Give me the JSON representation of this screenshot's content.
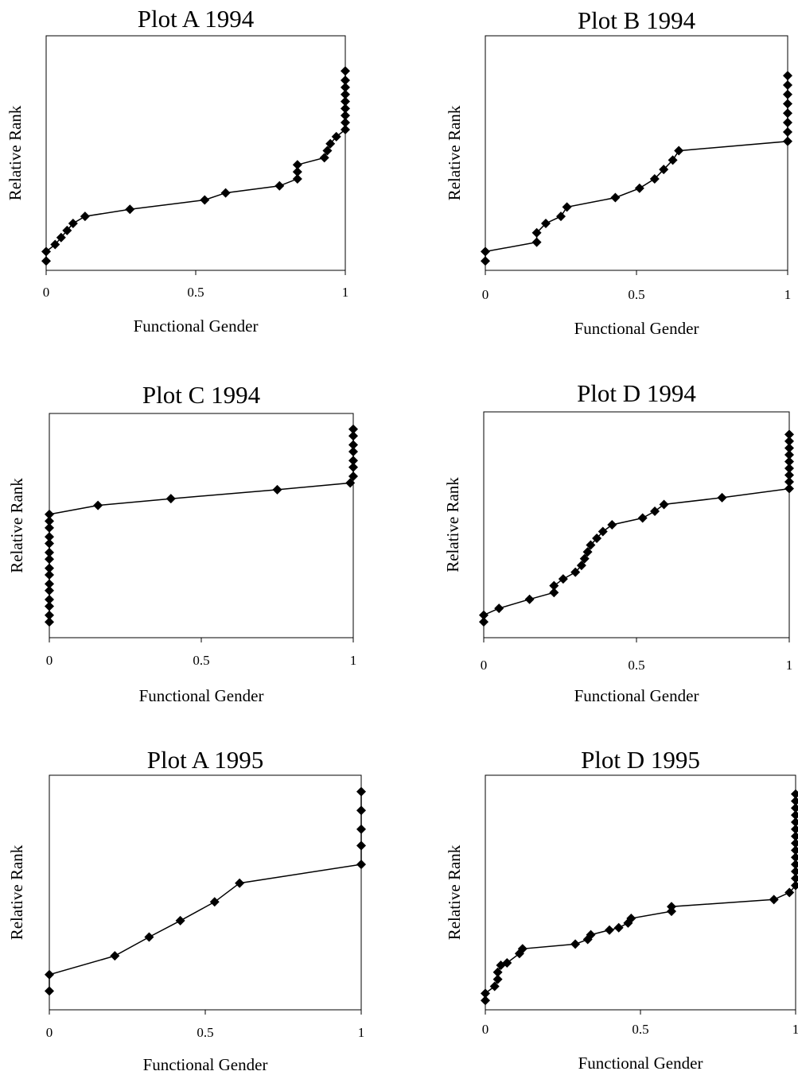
{
  "chart_data": [
    {
      "type": "line",
      "title": "Plot A 1994",
      "xlabel": "Functional Gender",
      "ylabel": "Relative Rank",
      "xlim": [
        0,
        1
      ],
      "ylim": [
        0,
        1
      ],
      "xticks": [
        "0",
        "0.5",
        "1"
      ],
      "points": [
        [
          0.0,
          0.04
        ],
        [
          0.0,
          0.08
        ],
        [
          0.03,
          0.11
        ],
        [
          0.05,
          0.14
        ],
        [
          0.07,
          0.17
        ],
        [
          0.09,
          0.2
        ],
        [
          0.13,
          0.23
        ],
        [
          0.28,
          0.26
        ],
        [
          0.53,
          0.3
        ],
        [
          0.6,
          0.33
        ],
        [
          0.78,
          0.36
        ],
        [
          0.84,
          0.39
        ],
        [
          0.84,
          0.42
        ],
        [
          0.84,
          0.45
        ],
        [
          0.93,
          0.48
        ],
        [
          0.94,
          0.51
        ],
        [
          0.95,
          0.54
        ],
        [
          0.97,
          0.57
        ],
        [
          1.0,
          0.6
        ],
        [
          1.0,
          0.63
        ],
        [
          1.0,
          0.66
        ],
        [
          1.0,
          0.69
        ],
        [
          1.0,
          0.72
        ],
        [
          1.0,
          0.75
        ],
        [
          1.0,
          0.78
        ],
        [
          1.0,
          0.81
        ],
        [
          1.0,
          0.85
        ]
      ]
    },
    {
      "type": "line",
      "title": "Plot B 1994",
      "xlabel": "Functional Gender",
      "ylabel": "Relative Rank",
      "xlim": [
        0,
        1
      ],
      "ylim": [
        0,
        1
      ],
      "xticks": [
        "0",
        "0.5",
        "1"
      ],
      "points": [
        [
          0.0,
          0.04
        ],
        [
          0.0,
          0.08
        ],
        [
          0.17,
          0.12
        ],
        [
          0.17,
          0.16
        ],
        [
          0.2,
          0.2
        ],
        [
          0.25,
          0.23
        ],
        [
          0.27,
          0.27
        ],
        [
          0.43,
          0.31
        ],
        [
          0.51,
          0.35
        ],
        [
          0.56,
          0.39
        ],
        [
          0.59,
          0.43
        ],
        [
          0.62,
          0.47
        ],
        [
          0.64,
          0.51
        ],
        [
          1.0,
          0.55
        ],
        [
          1.0,
          0.59
        ],
        [
          1.0,
          0.63
        ],
        [
          1.0,
          0.67
        ],
        [
          1.0,
          0.71
        ],
        [
          1.0,
          0.75
        ],
        [
          1.0,
          0.79
        ],
        [
          1.0,
          0.83
        ]
      ]
    },
    {
      "type": "line",
      "title": "Plot C 1994",
      "xlabel": "Functional Gender",
      "ylabel": "Relative Rank",
      "xlim": [
        0,
        1
      ],
      "ylim": [
        0,
        1
      ],
      "xticks": [
        "0",
        "0.5",
        "1"
      ],
      "points": [
        [
          0.0,
          0.07
        ],
        [
          0.0,
          0.1
        ],
        [
          0.0,
          0.14
        ],
        [
          0.0,
          0.17
        ],
        [
          0.0,
          0.21
        ],
        [
          0.0,
          0.24
        ],
        [
          0.0,
          0.28
        ],
        [
          0.0,
          0.31
        ],
        [
          0.0,
          0.35
        ],
        [
          0.0,
          0.38
        ],
        [
          0.0,
          0.42
        ],
        [
          0.0,
          0.45
        ],
        [
          0.0,
          0.49
        ],
        [
          0.0,
          0.52
        ],
        [
          0.0,
          0.55
        ],
        [
          0.16,
          0.59
        ],
        [
          0.4,
          0.62
        ],
        [
          0.75,
          0.66
        ],
        [
          0.99,
          0.69
        ],
        [
          1.0,
          0.72
        ],
        [
          1.0,
          0.76
        ],
        [
          1.0,
          0.79
        ],
        [
          1.0,
          0.83
        ],
        [
          1.0,
          0.86
        ],
        [
          1.0,
          0.9
        ],
        [
          1.0,
          0.93
        ]
      ]
    },
    {
      "type": "line",
      "title": "Plot D 1994",
      "xlabel": "Functional Gender",
      "ylabel": "Relative Rank",
      "xlim": [
        0,
        1
      ],
      "ylim": [
        0,
        1
      ],
      "xticks": [
        "0",
        "0.5",
        "1"
      ],
      "points": [
        [
          0.0,
          0.07
        ],
        [
          0.0,
          0.1
        ],
        [
          0.05,
          0.13
        ],
        [
          0.15,
          0.17
        ],
        [
          0.23,
          0.2
        ],
        [
          0.23,
          0.23
        ],
        [
          0.26,
          0.26
        ],
        [
          0.3,
          0.29
        ],
        [
          0.32,
          0.32
        ],
        [
          0.33,
          0.35
        ],
        [
          0.34,
          0.38
        ],
        [
          0.35,
          0.41
        ],
        [
          0.37,
          0.44
        ],
        [
          0.39,
          0.47
        ],
        [
          0.42,
          0.5
        ],
        [
          0.52,
          0.53
        ],
        [
          0.56,
          0.56
        ],
        [
          0.59,
          0.59
        ],
        [
          0.78,
          0.62
        ],
        [
          1.0,
          0.66
        ],
        [
          1.0,
          0.69
        ],
        [
          1.0,
          0.72
        ],
        [
          1.0,
          0.75
        ],
        [
          1.0,
          0.78
        ],
        [
          1.0,
          0.81
        ],
        [
          1.0,
          0.84
        ],
        [
          1.0,
          0.87
        ],
        [
          1.0,
          0.9
        ]
      ]
    },
    {
      "type": "line",
      "title": "Plot A 1995",
      "xlabel": "Functional Gender",
      "ylabel": "Relative Rank",
      "xlim": [
        0,
        1
      ],
      "ylim": [
        0,
        1
      ],
      "xticks": [
        "0",
        "0.5",
        "1"
      ],
      "points": [
        [
          0.0,
          0.08
        ],
        [
          0.0,
          0.15
        ],
        [
          0.21,
          0.23
        ],
        [
          0.32,
          0.31
        ],
        [
          0.42,
          0.38
        ],
        [
          0.53,
          0.46
        ],
        [
          0.61,
          0.54
        ],
        [
          1.0,
          0.62
        ],
        [
          1.0,
          0.7
        ],
        [
          1.0,
          0.77
        ],
        [
          1.0,
          0.85
        ],
        [
          1.0,
          0.93
        ]
      ]
    },
    {
      "type": "line",
      "title": "Plot D 1995",
      "xlabel": "Functional Gender",
      "ylabel": "Relative Rank",
      "xlim": [
        0,
        1
      ],
      "ylim": [
        0,
        1
      ],
      "xticks": [
        "0",
        "0.5",
        "1"
      ],
      "points": [
        [
          0.0,
          0.04
        ],
        [
          0.0,
          0.07
        ],
        [
          0.03,
          0.1
        ],
        [
          0.04,
          0.13
        ],
        [
          0.04,
          0.16
        ],
        [
          0.05,
          0.19
        ],
        [
          0.07,
          0.2
        ],
        [
          0.11,
          0.24
        ],
        [
          0.12,
          0.26
        ],
        [
          0.29,
          0.28
        ],
        [
          0.33,
          0.3
        ],
        [
          0.34,
          0.32
        ],
        [
          0.4,
          0.34
        ],
        [
          0.43,
          0.35
        ],
        [
          0.46,
          0.37
        ],
        [
          0.47,
          0.39
        ],
        [
          0.6,
          0.42
        ],
        [
          0.6,
          0.44
        ],
        [
          0.93,
          0.47
        ],
        [
          0.98,
          0.5
        ],
        [
          1.0,
          0.53
        ],
        [
          1.0,
          0.56
        ],
        [
          1.0,
          0.59
        ],
        [
          1.0,
          0.62
        ],
        [
          1.0,
          0.65
        ],
        [
          1.0,
          0.68
        ],
        [
          1.0,
          0.71
        ],
        [
          1.0,
          0.74
        ],
        [
          1.0,
          0.77
        ],
        [
          1.0,
          0.8
        ],
        [
          1.0,
          0.83
        ],
        [
          1.0,
          0.86
        ],
        [
          1.0,
          0.89
        ],
        [
          1.0,
          0.92
        ]
      ]
    }
  ]
}
